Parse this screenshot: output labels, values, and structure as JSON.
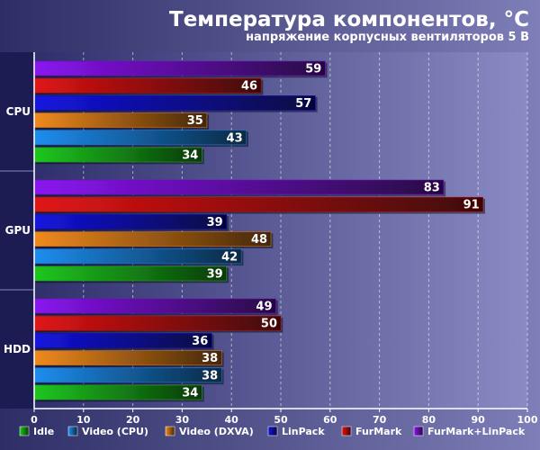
{
  "chart_data": {
    "type": "bar",
    "orientation": "horizontal",
    "title": "Температура компонентов, °C",
    "subtitle": "напряжение корпусных вентиляторов 5 В",
    "categories": [
      "CPU",
      "GPU",
      "HDD"
    ],
    "series": [
      {
        "name": "Idle",
        "values": [
          34,
          39,
          34
        ],
        "color": "#1fc81f"
      },
      {
        "name": "Video (CPU)",
        "values": [
          43,
          42,
          38
        ],
        "color": "#1e8ef0"
      },
      {
        "name": "Video (DXVA)",
        "values": [
          35,
          48,
          38
        ],
        "color": "#f08a1e"
      },
      {
        "name": "LinPack",
        "values": [
          57,
          39,
          36
        ],
        "color": "#1414e0"
      },
      {
        "name": "FurMark",
        "values": [
          46,
          91,
          50
        ],
        "color": "#e01414"
      },
      {
        "name": "FurMark+LinPack",
        "values": [
          59,
          83,
          49
        ],
        "color": "#8a14f0"
      }
    ],
    "xlim": [
      0,
      100
    ],
    "xticks": [
      0,
      10,
      20,
      30,
      40,
      50,
      60,
      70,
      80,
      90,
      100
    ],
    "grid": true,
    "legend_position": "bottom"
  }
}
